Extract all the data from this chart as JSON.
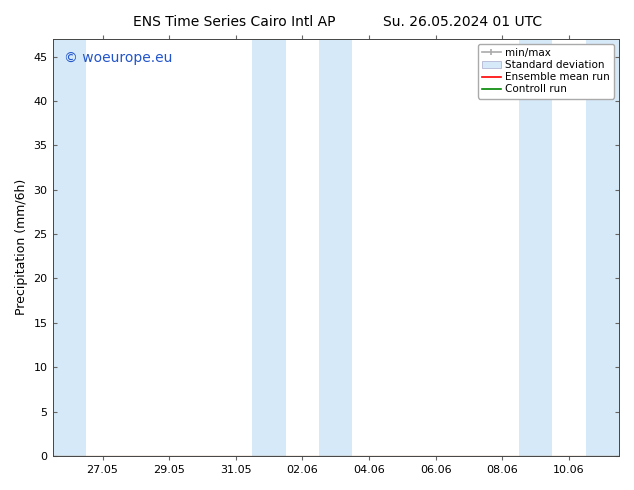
{
  "title_left": "ENS Time Series Cairo Intl AP",
  "title_right": "Su. 26.05.2024 01 UTC",
  "ylabel": "Precipitation (mm/6h)",
  "ylabel_fontsize": 9,
  "title_fontsize": 10,
  "background_color": "#ffffff",
  "plot_bg_color": "#ffffff",
  "ylim": [
    0,
    47
  ],
  "yticks": [
    0,
    5,
    10,
    15,
    20,
    25,
    30,
    35,
    40,
    45
  ],
  "xtick_labels": [
    "27.05",
    "29.05",
    "31.05",
    "02.06",
    "04.06",
    "06.06",
    "08.06",
    "10.06"
  ],
  "shaded_color": "#d6e9f8",
  "shaded_bands": [
    {
      "x_start": -0.5,
      "x_end": 0.5
    },
    {
      "x_start": 5.5,
      "x_end": 6.5
    },
    {
      "x_start": 7.5,
      "x_end": 8.5
    },
    {
      "x_start": 13.5,
      "x_end": 14.5
    },
    {
      "x_start": 15.5,
      "x_end": 16.5
    }
  ],
  "legend_items": [
    {
      "label": "min/max",
      "type": "errorbar",
      "color": "#aaaaaa"
    },
    {
      "label": "Standard deviation",
      "type": "fillbetween",
      "color": "#d6e9f8"
    },
    {
      "label": "Ensemble mean run",
      "type": "line",
      "color": "#ff0000"
    },
    {
      "label": "Controll run",
      "type": "line",
      "color": "#008800"
    }
  ],
  "watermark_text": "© woeurope.eu",
  "watermark_color": "#2255cc",
  "watermark_fontsize": 10,
  "tick_fontsize": 8,
  "legend_fontsize": 7.5,
  "x_min": -0.5,
  "x_max": 16.5,
  "x_ticks": [
    1,
    3,
    5,
    7,
    9,
    11,
    13,
    15
  ]
}
